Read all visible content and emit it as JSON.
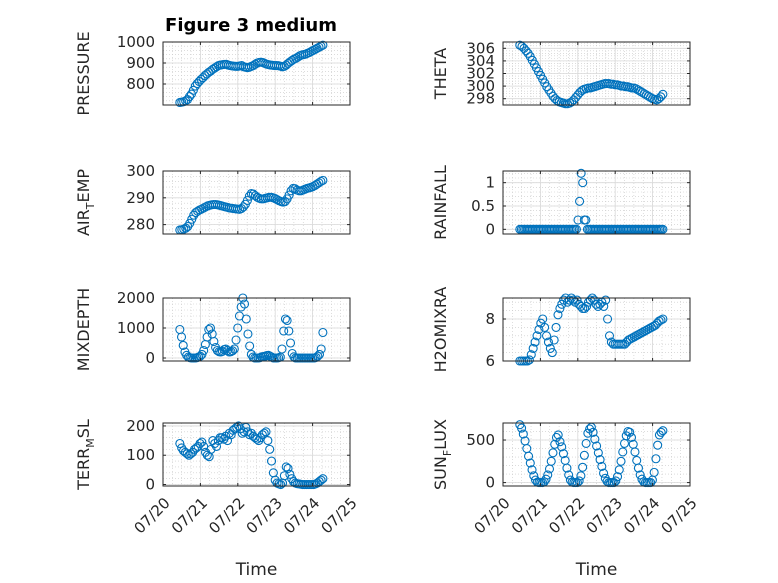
{
  "chart_data": {
    "type": "scatter",
    "title": "Figure 3 medium",
    "marker_color": "#0072BD",
    "grid": true,
    "x_axis": {
      "range": [
        "07/20",
        "07/25"
      ],
      "tick_labels": [
        "07/20",
        "07/21",
        "07/22",
        "07/23",
        "07/24",
        "07/25"
      ],
      "label": "Time"
    },
    "panels": [
      {
        "name": "PRESSURE",
        "ylabel_main": "PRESSURE",
        "ylabel_sub": "",
        "ylabel_tail": "",
        "ylim": [
          700,
          1000
        ],
        "yticks": [
          800,
          900,
          1000
        ],
        "values": [
          712,
          714,
          716,
          720,
          726,
          740,
          752,
          770,
          790,
          802,
          812,
          822,
          830,
          840,
          848,
          856,
          862,
          870,
          876,
          882,
          888,
          890,
          892,
          893,
          894,
          890,
          888,
          886,
          885,
          884,
          884,
          886,
          888,
          882,
          880,
          878,
          880,
          884,
          888,
          894,
          900,
          903,
          904,
          902,
          898,
          894,
          892,
          890,
          889,
          888,
          888,
          887,
          885,
          882,
          884,
          890,
          898,
          905,
          912,
          918,
          922,
          928,
          934,
          938,
          940,
          942,
          946,
          950,
          955,
          960,
          965,
          970,
          975,
          980,
          985
        ]
      },
      {
        "name": "THETA",
        "ylabel_main": "THETA",
        "ylabel_sub": "",
        "ylabel_tail": "",
        "ylim": [
          297,
          307
        ],
        "yticks": [
          298,
          300,
          302,
          304,
          306
        ],
        "values": [
          306.5,
          306.3,
          306.0,
          305.6,
          305.2,
          304.7,
          304.1,
          303.5,
          302.9,
          302.3,
          301.7,
          301.1,
          300.5,
          299.9,
          299.4,
          298.9,
          298.4,
          298.0,
          297.7,
          297.5,
          297.4,
          297.3,
          297.2,
          297.2,
          297.3,
          297.5,
          297.8,
          298.2,
          298.6,
          299.0,
          299.3,
          299.5,
          299.6,
          299.7,
          299.7,
          299.8,
          299.9,
          300.0,
          300.1,
          300.2,
          300.3,
          300.4,
          300.4,
          300.4,
          300.3,
          300.3,
          300.2,
          300.2,
          300.1,
          300.0,
          300.0,
          299.9,
          299.9,
          299.8,
          299.7,
          299.7,
          299.6,
          299.4,
          299.2,
          299.0,
          298.8,
          298.6,
          298.4,
          298.2,
          298.0,
          297.9,
          297.8,
          298.0,
          298.3,
          298.7
        ]
      },
      {
        "name": "AIR_TEMP",
        "ylabel_main": "AIR",
        "ylabel_sub": "T",
        "ylabel_tail": "EMP",
        "ylim": [
          276.5,
          300
        ],
        "yticks": [
          280,
          290,
          300
        ],
        "values": [
          278,
          278.1,
          278.3,
          278.7,
          279.3,
          280.5,
          282,
          283.5,
          284.5,
          285,
          285.5,
          285.8,
          286.2,
          286.6,
          287,
          287.2,
          287.4,
          287.5,
          287.5,
          287.4,
          287.2,
          287,
          286.8,
          286.6,
          286.4,
          286.2,
          286.1,
          286,
          285.9,
          285.8,
          285.7,
          286,
          286.6,
          287.6,
          289,
          290.6,
          291.6,
          291.4,
          290.8,
          290.2,
          289.8,
          289.6,
          289.6,
          289.8,
          290,
          290.2,
          290.2,
          290,
          289.7,
          289.3,
          288.9,
          288.6,
          288.4,
          288.6,
          289.6,
          291,
          292.6,
          293.5,
          293.4,
          292.9,
          292.6,
          292.6,
          292.9,
          293.2,
          293.5,
          293.7,
          293.9,
          294.2,
          294.6,
          295.1,
          295.6,
          296.1,
          296.5
        ]
      },
      {
        "name": "RAINFALL",
        "ylabel_main": "RAINFALL",
        "ylabel_sub": "",
        "ylabel_tail": "",
        "ylim": [
          -0.1,
          1.25
        ],
        "yticks": [
          0,
          0.5,
          1
        ],
        "values": [
          0,
          0,
          0,
          0,
          0,
          0,
          0,
          0,
          0,
          0,
          0,
          0,
          0,
          0,
          0,
          0,
          0,
          0,
          0,
          0,
          0,
          0,
          0,
          0,
          0,
          0,
          0,
          0,
          0,
          0,
          0,
          0,
          0,
          0,
          0,
          0,
          0,
          0.2,
          0.6,
          1.2,
          1.0,
          0.2,
          0.2,
          0,
          0,
          0,
          0,
          0,
          0,
          0,
          0,
          0,
          0,
          0,
          0,
          0,
          0,
          0,
          0,
          0,
          0,
          0,
          0,
          0,
          0,
          0,
          0,
          0,
          0,
          0,
          0,
          0,
          0,
          0,
          0,
          0,
          0,
          0,
          0,
          0,
          0,
          0,
          0,
          0,
          0,
          0,
          0,
          0,
          0,
          0,
          0,
          0
        ]
      },
      {
        "name": "MIXDEPTH",
        "ylabel_main": "MIXDEPTH",
        "ylabel_sub": "",
        "ylabel_tail": "",
        "ylim": [
          -100,
          2000
        ],
        "yticks": [
          0,
          1000,
          2000
        ],
        "values": [
          950,
          700,
          420,
          200,
          90,
          30,
          10,
          0,
          0,
          0,
          10,
          30,
          60,
          120,
          250,
          450,
          700,
          950,
          1000,
          800,
          550,
          350,
          250,
          210,
          200,
          220,
          280,
          300,
          250,
          200,
          210,
          240,
          300,
          600,
          1000,
          1400,
          1700,
          2000,
          1800,
          1300,
          800,
          400,
          120,
          30,
          0,
          0,
          0,
          10,
          40,
          50,
          60,
          80,
          90,
          60,
          30,
          0,
          0,
          0,
          10,
          30,
          300,
          900,
          1300,
          1250,
          900,
          500,
          150,
          40,
          0,
          0,
          0,
          0,
          0,
          0,
          0,
          0,
          0,
          0,
          0,
          0,
          20,
          60,
          120,
          300,
          850
        ]
      },
      {
        "name": "H2OMIXRA",
        "ylabel_main": "H2OMIXRA",
        "ylabel_sub": "",
        "ylabel_tail": "",
        "ylim": [
          6,
          9
        ],
        "yticks": [
          6,
          8
        ],
        "values": [
          6,
          6,
          6,
          6,
          6,
          6.05,
          6.3,
          6.6,
          6.9,
          7.2,
          7.5,
          7.8,
          8.0,
          7.6,
          7.2,
          6.9,
          6.6,
          6.4,
          7.0,
          7.6,
          8.2,
          8.5,
          8.7,
          8.9,
          9.0,
          8.8,
          8.9,
          9.0,
          8.9,
          8.8,
          8.9,
          8.7,
          8.6,
          8.5,
          8.5,
          8.6,
          8.8,
          8.9,
          9.0,
          8.9,
          8.7,
          8.6,
          8.7,
          8.8,
          8.6,
          8.9,
          8.0,
          7.2,
          6.9,
          6.8,
          6.8,
          6.8,
          6.8,
          6.8,
          6.8,
          6.8,
          6.9,
          7.0,
          7.05,
          7.1,
          7.15,
          7.2,
          7.25,
          7.3,
          7.35,
          7.4,
          7.45,
          7.5,
          7.55,
          7.6,
          7.65,
          7.7,
          7.8,
          7.9,
          7.95,
          8.0
        ]
      },
      {
        "name": "TERR_MSL",
        "ylabel_main": "TERR",
        "ylabel_sub": "M",
        "ylabel_tail": "SL",
        "ylim": [
          -5,
          210
        ],
        "yticks": [
          0,
          100,
          200
        ],
        "values": [
          140,
          125,
          115,
          110,
          105,
          100,
          105,
          110,
          120,
          125,
          130,
          140,
          145,
          130,
          110,
          100,
          95,
          120,
          150,
          140,
          130,
          150,
          160,
          160,
          155,
          165,
          150,
          175,
          170,
          185,
          190,
          195,
          200,
          190,
          175,
          180,
          195,
          180,
          170,
          175,
          165,
          160,
          155,
          150,
          160,
          170,
          175,
          180,
          150,
          120,
          80,
          40,
          15,
          5,
          2,
          0,
          5,
          30,
          60,
          55,
          35,
          20,
          10,
          5,
          3,
          2,
          1,
          0,
          0,
          0,
          0,
          0,
          0,
          0,
          2,
          5,
          10,
          15,
          20
        ]
      },
      {
        "name": "SUN_FLUX",
        "ylabel_main": "SUN",
        "ylabel_sub": "F",
        "ylabel_tail": "LUX",
        "ylim": [
          -40,
          700
        ],
        "yticks": [
          0,
          500
        ],
        "values": [
          680,
          640,
          570,
          490,
          400,
          310,
          230,
          150,
          80,
          30,
          5,
          0,
          0,
          0,
          10,
          40,
          90,
          160,
          250,
          350,
          450,
          530,
          560,
          480,
          420,
          340,
          260,
          170,
          90,
          30,
          5,
          0,
          0,
          0,
          20,
          80,
          180,
          320,
          460,
          580,
          630,
          650,
          590,
          510,
          430,
          350,
          270,
          190,
          110,
          50,
          15,
          0,
          0,
          0,
          0,
          20,
          70,
          150,
          250,
          360,
          460,
          550,
          600,
          590,
          530,
          450,
          360,
          260,
          170,
          90,
          40,
          10,
          0,
          0,
          0,
          0,
          30,
          120,
          280,
          440,
          560,
          590,
          610
        ]
      }
    ]
  }
}
